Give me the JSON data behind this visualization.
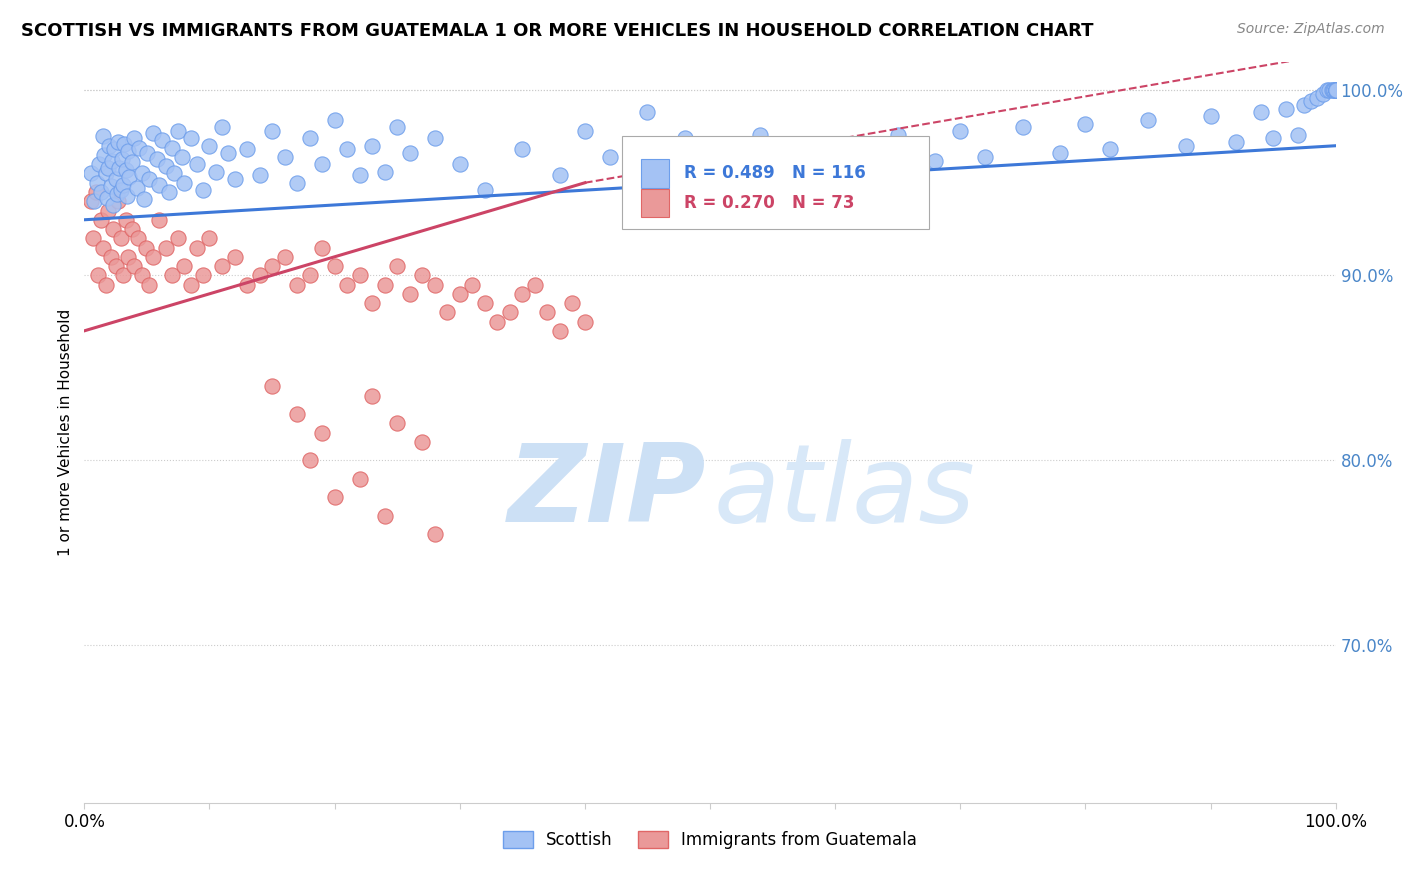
{
  "title": "SCOTTISH VS IMMIGRANTS FROM GUATEMALA 1 OR MORE VEHICLES IN HOUSEHOLD CORRELATION CHART",
  "source": "Source: ZipAtlas.com",
  "ylabel": "1 or more Vehicles in Household",
  "xlim": [
    0.0,
    1.0
  ],
  "ylim": [
    0.615,
    1.015
  ],
  "yticks": [
    0.7,
    0.8,
    0.9,
    1.0
  ],
  "ytick_labels": [
    "70.0%",
    "80.0%",
    "90.0%",
    "100.0%"
  ],
  "legend_blue_label": "Scottish",
  "legend_pink_label": "Immigrants from Guatemala",
  "R_blue": 0.489,
  "N_blue": 116,
  "R_pink": 0.27,
  "N_pink": 73,
  "blue_color": "#a4c2f4",
  "blue_edge_color": "#6d9eeb",
  "pink_color": "#ea9999",
  "pink_edge_color": "#e06666",
  "trendline_blue_color": "#3d78d8",
  "trendline_pink_color": "#cc4466",
  "blue_scatter_x": [
    0.005,
    0.008,
    0.01,
    0.012,
    0.013,
    0.015,
    0.016,
    0.017,
    0.018,
    0.019,
    0.02,
    0.021,
    0.022,
    0.023,
    0.024,
    0.025,
    0.026,
    0.027,
    0.028,
    0.029,
    0.03,
    0.031,
    0.032,
    0.033,
    0.034,
    0.035,
    0.036,
    0.038,
    0.04,
    0.042,
    0.044,
    0.046,
    0.048,
    0.05,
    0.052,
    0.055,
    0.058,
    0.06,
    0.062,
    0.065,
    0.068,
    0.07,
    0.072,
    0.075,
    0.078,
    0.08,
    0.085,
    0.09,
    0.095,
    0.1,
    0.105,
    0.11,
    0.115,
    0.12,
    0.13,
    0.14,
    0.15,
    0.16,
    0.17,
    0.18,
    0.19,
    0.2,
    0.21,
    0.22,
    0.23,
    0.24,
    0.25,
    0.26,
    0.28,
    0.3,
    0.32,
    0.35,
    0.38,
    0.4,
    0.42,
    0.45,
    0.48,
    0.51,
    0.54,
    0.57,
    0.6,
    0.62,
    0.65,
    0.68,
    0.7,
    0.72,
    0.75,
    0.78,
    0.8,
    0.82,
    0.85,
    0.88,
    0.9,
    0.92,
    0.94,
    0.95,
    0.96,
    0.97,
    0.975,
    0.98,
    0.985,
    0.99,
    0.993,
    0.995,
    0.997,
    0.998,
    0.999,
    1.0,
    1.0,
    1.0,
    1.0,
    1.0,
    1.0,
    1.0,
    1.0,
    1.0
  ],
  "blue_scatter_y": [
    0.955,
    0.94,
    0.95,
    0.96,
    0.945,
    0.975,
    0.965,
    0.955,
    0.942,
    0.958,
    0.97,
    0.948,
    0.962,
    0.938,
    0.968,
    0.952,
    0.944,
    0.972,
    0.958,
    0.946,
    0.963,
    0.949,
    0.971,
    0.957,
    0.943,
    0.967,
    0.953,
    0.961,
    0.974,
    0.947,
    0.969,
    0.955,
    0.941,
    0.966,
    0.952,
    0.977,
    0.963,
    0.949,
    0.973,
    0.959,
    0.945,
    0.969,
    0.955,
    0.978,
    0.964,
    0.95,
    0.974,
    0.96,
    0.946,
    0.97,
    0.956,
    0.98,
    0.966,
    0.952,
    0.968,
    0.954,
    0.978,
    0.964,
    0.95,
    0.974,
    0.96,
    0.984,
    0.968,
    0.954,
    0.97,
    0.956,
    0.98,
    0.966,
    0.974,
    0.96,
    0.946,
    0.968,
    0.954,
    0.978,
    0.964,
    0.988,
    0.974,
    0.96,
    0.976,
    0.962,
    0.966,
    0.952,
    0.976,
    0.962,
    0.978,
    0.964,
    0.98,
    0.966,
    0.982,
    0.968,
    0.984,
    0.97,
    0.986,
    0.972,
    0.988,
    0.974,
    0.99,
    0.976,
    0.992,
    0.994,
    0.996,
    0.998,
    1.0,
    1.0,
    1.0,
    1.0,
    1.0,
    1.0,
    1.0,
    1.0,
    1.0,
    1.0,
    1.0,
    1.0,
    1.0,
    1.0
  ],
  "pink_scatter_x": [
    0.005,
    0.007,
    0.009,
    0.011,
    0.013,
    0.015,
    0.017,
    0.019,
    0.021,
    0.023,
    0.025,
    0.027,
    0.029,
    0.031,
    0.033,
    0.035,
    0.038,
    0.04,
    0.043,
    0.046,
    0.049,
    0.052,
    0.055,
    0.06,
    0.065,
    0.07,
    0.075,
    0.08,
    0.085,
    0.09,
    0.095,
    0.1,
    0.11,
    0.12,
    0.13,
    0.14,
    0.15,
    0.16,
    0.17,
    0.18,
    0.19,
    0.2,
    0.21,
    0.22,
    0.23,
    0.24,
    0.25,
    0.26,
    0.27,
    0.28,
    0.29,
    0.3,
    0.31,
    0.32,
    0.33,
    0.34,
    0.35,
    0.36,
    0.37,
    0.38,
    0.39,
    0.4,
    0.15,
    0.17,
    0.19,
    0.23,
    0.25,
    0.27,
    0.18,
    0.22,
    0.2,
    0.24,
    0.28
  ],
  "pink_scatter_y": [
    0.94,
    0.92,
    0.945,
    0.9,
    0.93,
    0.915,
    0.895,
    0.935,
    0.91,
    0.925,
    0.905,
    0.94,
    0.92,
    0.9,
    0.93,
    0.91,
    0.925,
    0.905,
    0.92,
    0.9,
    0.915,
    0.895,
    0.91,
    0.93,
    0.915,
    0.9,
    0.92,
    0.905,
    0.895,
    0.915,
    0.9,
    0.92,
    0.905,
    0.91,
    0.895,
    0.9,
    0.905,
    0.91,
    0.895,
    0.9,
    0.915,
    0.905,
    0.895,
    0.9,
    0.885,
    0.895,
    0.905,
    0.89,
    0.9,
    0.895,
    0.88,
    0.89,
    0.895,
    0.885,
    0.875,
    0.88,
    0.89,
    0.895,
    0.88,
    0.87,
    0.885,
    0.875,
    0.84,
    0.825,
    0.815,
    0.835,
    0.82,
    0.81,
    0.8,
    0.79,
    0.78,
    0.77,
    0.76
  ],
  "trendline_blue_x_start": 0.0,
  "trendline_blue_x_end": 1.0,
  "trendline_blue_y_start": 0.93,
  "trendline_blue_y_end": 0.97,
  "trendline_pink_x_start": 0.0,
  "trendline_pink_x_end": 0.4,
  "trendline_pink_y_start": 0.87,
  "trendline_pink_y_end": 0.95,
  "trendline_pink_dash_x_end": 1.0,
  "trendline_pink_dash_y_end": 1.02
}
